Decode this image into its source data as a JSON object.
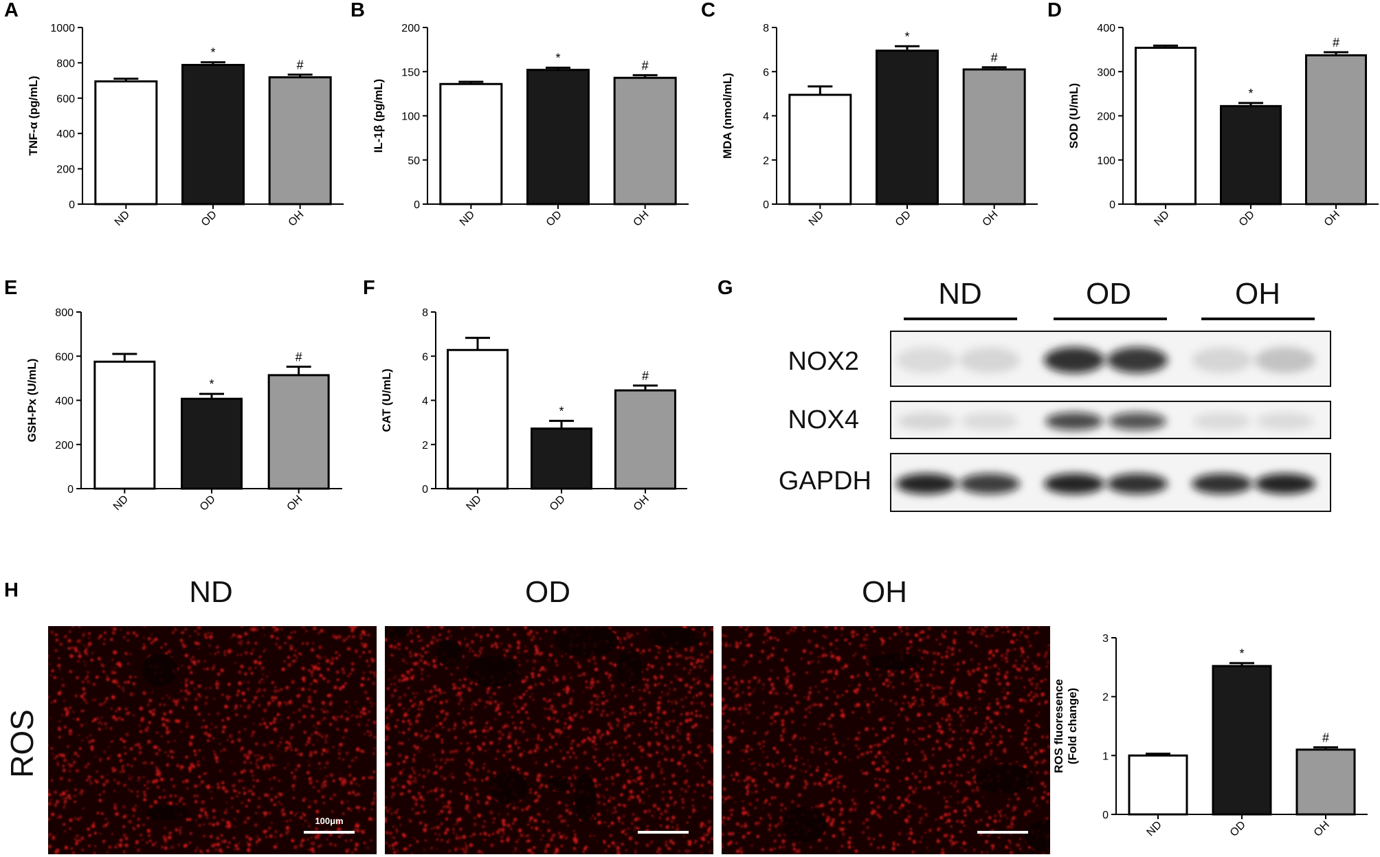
{
  "chart_data": [
    {
      "panel": "A",
      "type": "bar",
      "categories": [
        "ND",
        "OD",
        "OH"
      ],
      "values": [
        695,
        788,
        718
      ],
      "errors": [
        15,
        15,
        15
      ],
      "marks": [
        "",
        "*",
        "#"
      ],
      "ylabel": "TNF-α (pg/mL)",
      "ylim": [
        0,
        1000
      ],
      "yticks": [
        0,
        200,
        400,
        600,
        800,
        1000
      ],
      "ytick_labels": [
        "0",
        "200",
        "400",
        "600",
        "800",
        "1000"
      ]
    },
    {
      "panel": "B",
      "type": "bar",
      "categories": [
        "ND",
        "OD",
        "OH"
      ],
      "values": [
        136,
        152,
        143
      ],
      "errors": [
        2.5,
        2.5,
        3
      ],
      "marks": [
        "",
        "*",
        "#"
      ],
      "ylabel": "IL-1β (pg/mL)",
      "ylim": [
        0,
        200
      ],
      "yticks": [
        0,
        50,
        100,
        150,
        200
      ],
      "ytick_labels": [
        "0",
        "50",
        "100",
        "150",
        "200"
      ]
    },
    {
      "panel": "C",
      "type": "bar",
      "categories": [
        "ND",
        "OD",
        "OH"
      ],
      "values": [
        4.95,
        6.95,
        6.1
      ],
      "errors": [
        0.38,
        0.2,
        0.1
      ],
      "marks": [
        "",
        "*",
        "#"
      ],
      "ylabel": "MDA (nmol/mL)",
      "ylim": [
        0,
        8
      ],
      "yticks": [
        0,
        2,
        4,
        6,
        8
      ],
      "ytick_labels": [
        "0",
        "2",
        "4",
        "6",
        "8"
      ]
    },
    {
      "panel": "D",
      "type": "bar",
      "categories": [
        "ND",
        "OD",
        "OH"
      ],
      "values": [
        354,
        222,
        337
      ],
      "errors": [
        5,
        7,
        7
      ],
      "marks": [
        "",
        "*",
        "#"
      ],
      "ylabel": "SOD (U/mL)",
      "ylim": [
        0,
        400
      ],
      "yticks": [
        0,
        100,
        200,
        300,
        400
      ],
      "ytick_labels": [
        "0",
        "100",
        "200",
        "300",
        "400"
      ]
    },
    {
      "panel": "E",
      "type": "bar",
      "categories": [
        "ND",
        "OD",
        "OH"
      ],
      "values": [
        575,
        407,
        514
      ],
      "errors": [
        35,
        22,
        38
      ],
      "marks": [
        "",
        "*",
        "#"
      ],
      "ylabel": "GSH-Px (U/mL)",
      "ylim": [
        0,
        800
      ],
      "yticks": [
        0,
        200,
        400,
        600,
        800
      ],
      "ytick_labels": [
        "0",
        "200",
        "400",
        "600",
        "800"
      ]
    },
    {
      "panel": "F",
      "type": "bar",
      "categories": [
        "ND",
        "OD",
        "OH"
      ],
      "values": [
        6.28,
        2.72,
        4.45
      ],
      "errors": [
        0.55,
        0.35,
        0.22
      ],
      "marks": [
        "",
        "*",
        "#"
      ],
      "ylabel": "CAT (U/mL)",
      "ylim": [
        0,
        8
      ],
      "yticks": [
        0,
        2,
        4,
        6,
        8
      ],
      "ytick_labels": [
        "0",
        "2",
        "4",
        "6",
        "8"
      ]
    },
    {
      "panel": "H",
      "type": "bar",
      "categories": [
        "ND",
        "OD",
        "OH"
      ],
      "values": [
        1.0,
        2.52,
        1.1
      ],
      "errors": [
        0.03,
        0.05,
        0.04
      ],
      "marks": [
        "",
        "*",
        "#"
      ],
      "ylabel": "ROS fluoresence",
      "ylabel2": "(Fold change)",
      "ylim": [
        0,
        3
      ],
      "yticks": [
        0,
        1,
        2,
        3
      ],
      "ytick_labels": [
        "0",
        "1",
        "2",
        "3"
      ]
    }
  ],
  "bar_fills": [
    "#ffffff",
    "#1a1a1a",
    "#9a9a9a"
  ],
  "panel_letters": [
    "A",
    "B",
    "C",
    "D",
    "E",
    "F",
    "G",
    "H"
  ],
  "western_blot": {
    "groups": [
      "ND",
      "OD",
      "OH"
    ],
    "rows": [
      "NOX2",
      "NOX4",
      "GAPDH"
    ],
    "band_intensity": {
      "NOX2": [
        0.1,
        0.12,
        0.85,
        0.82,
        0.12,
        0.2
      ],
      "NOX4": [
        0.12,
        0.1,
        0.75,
        0.7,
        0.1,
        0.1
      ],
      "GAPDH": [
        0.9,
        0.8,
        0.9,
        0.85,
        0.85,
        0.9
      ]
    }
  },
  "ros_images": {
    "titles": [
      "ND",
      "OD",
      "OH"
    ],
    "row_label": "ROS",
    "scale_label": "100μm",
    "background": "#180000",
    "signal_color": "#d01818"
  }
}
